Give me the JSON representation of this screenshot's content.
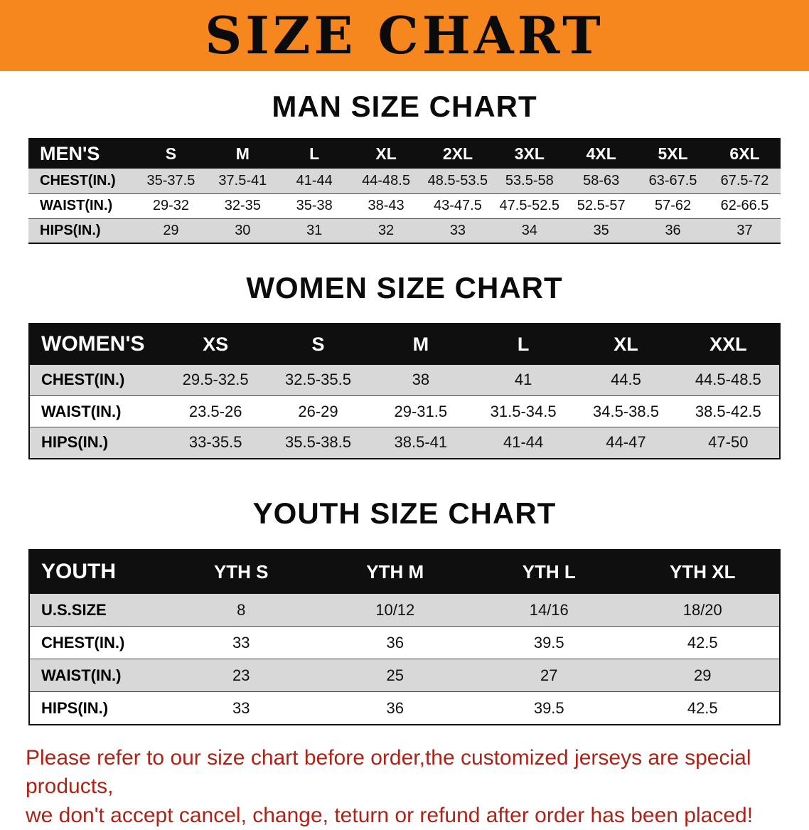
{
  "banner": {
    "title": "SIZE CHART",
    "bg_color": "#F6871E"
  },
  "sections": [
    {
      "heading": "MAN SIZE CHART",
      "table": {
        "header": [
          "MEN'S",
          "S",
          "M",
          "L",
          "XL",
          "2XL",
          "3XL",
          "4XL",
          "5XL",
          "6XL"
        ],
        "rows": [
          [
            "CHEST(IN.)",
            "35-37.5",
            "37.5-41",
            "41-44",
            "44-48.5",
            "48.5-53.5",
            "53.5-58",
            "58-63",
            "63-67.5",
            "67.5-72"
          ],
          [
            "WAIST(IN.)",
            "29-32",
            "32-35",
            "35-38",
            "38-43",
            "43-47.5",
            "47.5-52.5",
            "52.5-57",
            "57-62",
            "62-66.5"
          ],
          [
            "HIPS(IN.)",
            "29",
            "30",
            "31",
            "32",
            "33",
            "34",
            "35",
            "36",
            "37"
          ]
        ]
      }
    },
    {
      "heading": "WOMEN SIZE CHART",
      "table": {
        "header": [
          "WOMEN'S",
          "XS",
          "S",
          "M",
          "L",
          "XL",
          "XXL"
        ],
        "rows": [
          [
            "CHEST(IN.)",
            "29.5-32.5",
            "32.5-35.5",
            "38",
            "41",
            "44.5",
            "44.5-48.5"
          ],
          [
            "WAIST(IN.)",
            "23.5-26",
            "26-29",
            "29-31.5",
            "31.5-34.5",
            "34.5-38.5",
            "38.5-42.5"
          ],
          [
            "HIPS(IN.)",
            "33-35.5",
            "35.5-38.5",
            "38.5-41",
            "41-44",
            "44-47",
            "47-50"
          ]
        ]
      }
    },
    {
      "heading": "YOUTH SIZE CHART",
      "table": {
        "header": [
          "YOUTH",
          "YTH S",
          "YTH M",
          "YTH L",
          "YTH XL"
        ],
        "rows": [
          [
            "U.S.SIZE",
            "8",
            "10/12",
            "14/16",
            "18/20"
          ],
          [
            "CHEST(IN.)",
            "33",
            "36",
            "39.5",
            "42.5"
          ],
          [
            "WAIST(IN.)",
            "23",
            "25",
            "27",
            "29"
          ],
          [
            "HIPS(IN.)",
            "33",
            "36",
            "39.5",
            "42.5"
          ]
        ]
      }
    }
  ],
  "footer_note": {
    "line1": "Please refer to our size chart before order,the customized jerseys are special products,",
    "line2": "we don't accept cancel, change, teturn or refund after order has been placed!",
    "color": "#AC2318"
  }
}
